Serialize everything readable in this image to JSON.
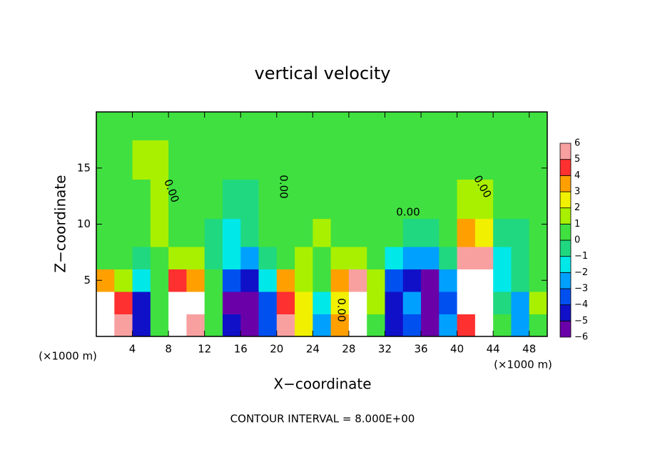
{
  "chart_data": {
    "type": "heatmap",
    "title": "vertical velocity",
    "xlabel": "X−coordinate",
    "ylabel": "Z−coordinate",
    "x_unit_label": "(×1000 m)",
    "footer": "CONTOUR INTERVAL = 8.000E+00",
    "contour_labels": [
      "0.00",
      "0.00",
      "0.00",
      "0.00",
      "0.00"
    ],
    "xlim": [
      0,
      50
    ],
    "ylim": [
      0,
      20
    ],
    "xticks": [
      4,
      8,
      12,
      16,
      20,
      24,
      28,
      32,
      36,
      40,
      44,
      48
    ],
    "yticks": [
      5,
      10,
      15
    ],
    "x": [
      1,
      3,
      5,
      7,
      9,
      11,
      13,
      15,
      17,
      19,
      21,
      23,
      25,
      27,
      29,
      31,
      33,
      35,
      37,
      39,
      41,
      43,
      45,
      47,
      49
    ],
    "y": [
      1,
      3,
      5,
      7,
      9,
      12,
      16,
      19
    ],
    "z": [
      [
        6,
        5,
        -5,
        0,
        6,
        5,
        0,
        -5,
        -6,
        -4,
        5,
        2,
        -3,
        3,
        6,
        0,
        -5,
        -4,
        -6,
        -3,
        4,
        6,
        0,
        -3,
        0
      ],
      [
        6,
        4,
        -5,
        0,
        6,
        6,
        0,
        -6,
        -6,
        -4,
        4,
        2,
        -2,
        2,
        6,
        1,
        -5,
        -3,
        -6,
        -4,
        6,
        6,
        -1,
        -3,
        1
      ],
      [
        3,
        1,
        -2,
        0,
        4,
        3,
        0,
        -4,
        -5,
        -2,
        3,
        1,
        0,
        3,
        5,
        1,
        -4,
        -5,
        -6,
        -3,
        6,
        6,
        -2,
        -1,
        0
      ],
      [
        0,
        0,
        -1,
        0,
        1,
        1,
        -1,
        -2,
        -3,
        -1,
        0,
        1,
        0,
        1,
        1,
        0,
        -2,
        -3,
        -3,
        -1,
        5,
        5,
        -2,
        -1,
        0
      ],
      [
        0,
        0,
        0,
        1,
        0,
        0,
        -1,
        -2,
        -1,
        0,
        0,
        0,
        1,
        0,
        0,
        0,
        0,
        -1,
        -1,
        0,
        3,
        2,
        -1,
        -1,
        0
      ],
      [
        0,
        0,
        0,
        1,
        0,
        0,
        0,
        -1,
        -1,
        0,
        0,
        0,
        0,
        0,
        0,
        0,
        0,
        0,
        0,
        0,
        1,
        1,
        0,
        0,
        0
      ],
      [
        0,
        0,
        1,
        1,
        0,
        0,
        0,
        0,
        0,
        0,
        0,
        0,
        0,
        0,
        0,
        0,
        0,
        0,
        0,
        0,
        0,
        0,
        0,
        0,
        0
      ],
      [
        0,
        0,
        0,
        0,
        0,
        0,
        0,
        0,
        0,
        0,
        0,
        0,
        0,
        0,
        0,
        0,
        0,
        0,
        0,
        0,
        0,
        0,
        0,
        0,
        0
      ]
    ],
    "colorbar": {
      "ticks": [
        6,
        5,
        4,
        3,
        2,
        1,
        0,
        {
          "value": -1,
          "label": "−1"
        },
        {
          "value": -2,
          "label": "−2"
        },
        {
          "value": -3,
          "label": "−3"
        },
        {
          "value": -4,
          "label": "−4"
        },
        {
          "value": -5,
          "label": "−5"
        },
        {
          "value": -6,
          "label": "−6"
        }
      ],
      "colors": [
        "#6a00a8",
        "#1010c8",
        "#0050f0",
        "#00a0ff",
        "#00e8e8",
        "#20d880",
        "#40e040",
        "#a8f000",
        "#f0f000",
        "#ffa000",
        "#ff3030",
        "#f8a0a0"
      ]
    }
  }
}
